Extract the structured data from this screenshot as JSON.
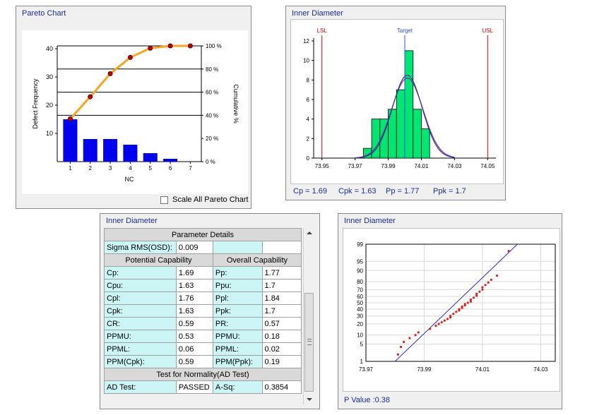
{
  "pareto": {
    "title": "Pareto Chart",
    "y_ticks": [
      "10",
      "20",
      "30",
      "40"
    ],
    "y2_ticks": [
      "0 %",
      "20 %",
      "40 %",
      "60 %",
      "80 %",
      "100 %"
    ],
    "x_ticks": [
      "1",
      "2",
      "3",
      "4",
      "5",
      "6",
      "7"
    ],
    "ylabel": "Defect  Frequency",
    "y2label": "Cumulative %",
    "xlabel": "NC",
    "scale_all_label": "Scale All Pareto Chart",
    "scale_all_checked": false,
    "bar_color": "#0000ee",
    "line_color": "#f5a623"
  },
  "histogram": {
    "title": "Inner Diameter",
    "lsl_label": "LSL",
    "usl_label": "USL",
    "target_label": "Target",
    "y_ticks": [
      "0",
      "2",
      "4",
      "6",
      "8",
      "10",
      "12"
    ],
    "x_ticks": [
      "73.95",
      "73.97",
      "73.99",
      "74.01",
      "74.03",
      "74.05"
    ],
    "bar_color": "#00e673",
    "cp": "Cp = 1.69",
    "cpk": "Cpk = 1.63",
    "pp": "Pp = 1.77",
    "ppk": "Ppk = 1.7"
  },
  "params": {
    "title": "Inner Diameter",
    "section_param": "Parameter Details",
    "sigma_label": "Sigma RMS(OSD):",
    "sigma_value": "0.009",
    "potential": "Potential Capability",
    "overall": "Overall Capability",
    "rows": [
      {
        "l1": "Cp:",
        "v1": "1.69",
        "l2": "Pp:",
        "v2": "1.77"
      },
      {
        "l1": "Cpu:",
        "v1": "1.63",
        "l2": "Ppu:",
        "v2": "1.7"
      },
      {
        "l1": "Cpl:",
        "v1": "1.76",
        "l2": "Ppl:",
        "v2": "1.84"
      },
      {
        "l1": "Cpk:",
        "v1": "1.63",
        "l2": "Ppk:",
        "v2": "1.7"
      },
      {
        "l1": "CR:",
        "v1": "0.59",
        "l2": "PR:",
        "v2": "0.57"
      },
      {
        "l1": "PPMU:",
        "v1": "0.53",
        "l2": "PPMU:",
        "v2": "0.18"
      },
      {
        "l1": "PPML:",
        "v1": "0.06",
        "l2": "PPML:",
        "v2": "0.02"
      },
      {
        "l1": "PPM(Cpk):",
        "v1": "0.59",
        "l2": "PPM(Ppk):",
        "v2": "0.19"
      }
    ],
    "normality": "Test for Normality(AD Test)",
    "ad_label": "AD Test:",
    "ad_value": "PASSED",
    "asq_label": "A-Sq:",
    "asq_value": "0.3854"
  },
  "probplot": {
    "title": "Inner Diameter",
    "y_ticks": [
      "1",
      "5",
      "10",
      "20",
      "30",
      "40",
      "50",
      "60",
      "70",
      "80",
      "90",
      "95",
      "99"
    ],
    "x_ticks": [
      "73.97",
      "73.99",
      "74.01",
      "74.03"
    ],
    "pvalue": "P Value :0.38",
    "point_color": "#e02020",
    "line_color": "#2a2ad0"
  },
  "chart_data": [
    {
      "type": "bar",
      "title": "Pareto Chart",
      "xlabel": "NC",
      "ylabel": "Defect  Frequency",
      "y2label": "Cumulative %",
      "categories": [
        "1",
        "2",
        "3",
        "4",
        "5",
        "6",
        "7"
      ],
      "values": [
        15,
        8,
        8,
        6,
        3,
        1,
        0
      ],
      "cumulative_percent": [
        37,
        56,
        76,
        90,
        98,
        100,
        100
      ],
      "ylim": [
        0,
        41
      ],
      "y2lim": [
        0,
        100
      ]
    },
    {
      "type": "bar",
      "title": "Inner Diameter",
      "bin_edges": [
        73.975,
        73.98,
        73.985,
        73.99,
        73.995,
        74.0,
        74.005,
        74.01,
        74.015
      ],
      "values": [
        1,
        4,
        4,
        5,
        7,
        11,
        5,
        3
      ],
      "lsl": 73.95,
      "usl": 74.05,
      "target": 74.0,
      "xlim": [
        73.945,
        74.055
      ],
      "ylim": [
        0,
        12
      ]
    },
    {
      "type": "scatter",
      "title": "Inner Diameter",
      "y_scale": "normal-probability",
      "xlim": [
        73.97,
        74.035
      ],
      "ylim": [
        1,
        99
      ],
      "x": [
        73.981,
        73.982,
        73.983,
        73.985,
        73.987,
        73.988,
        73.992,
        73.994,
        73.995,
        73.996,
        73.997,
        73.998,
        73.999,
        73.999,
        74.0,
        74.001,
        74.002,
        74.002,
        74.003,
        74.003,
        74.004,
        74.004,
        74.005,
        74.006,
        74.006,
        74.007,
        74.008,
        74.008,
        74.009,
        74.01,
        74.01,
        74.011,
        74.012,
        74.013,
        74.015,
        74.019
      ],
      "y": [
        2,
        4,
        6,
        8,
        10,
        12,
        15,
        18,
        20,
        22,
        24,
        26,
        28,
        30,
        33,
        36,
        38,
        40,
        42,
        44,
        46,
        48,
        50,
        52,
        55,
        58,
        61,
        64,
        67,
        70,
        73,
        76,
        79,
        82,
        86,
        98
      ],
      "fit_line": {
        "x": [
          73.98,
          74.022
        ],
        "y": [
          1,
          99
        ]
      }
    }
  ]
}
